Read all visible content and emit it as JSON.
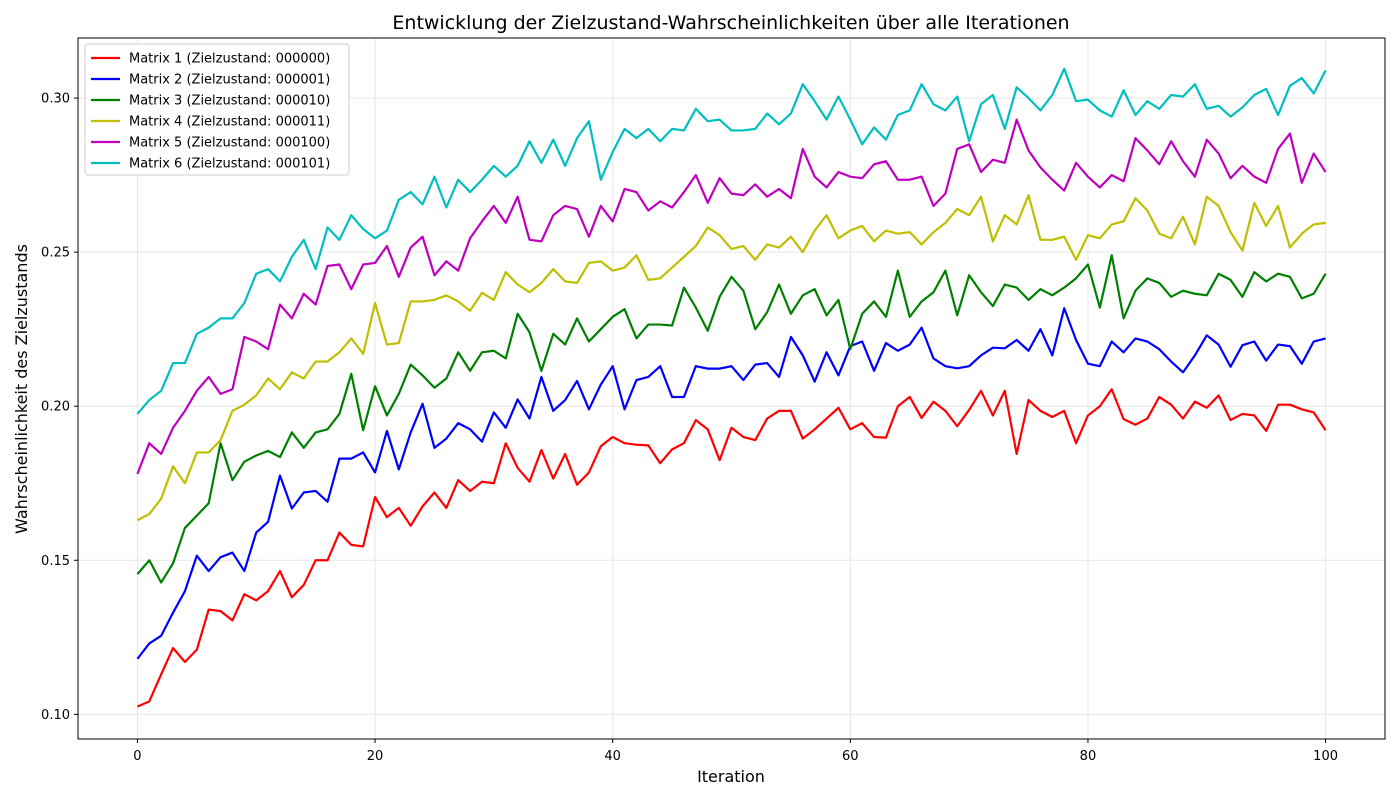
{
  "chart_data": {
    "type": "line",
    "title": "Entwicklung der Zielzustand-Wahrscheinlichkeiten über alle Iterationen",
    "xlabel": "Iteration",
    "ylabel": "Wahrscheinlichkeit des Zielzustands",
    "xlim": [
      -5,
      105
    ],
    "ylim": [
      0.092,
      0.3195
    ],
    "xticks": [
      0,
      20,
      40,
      60,
      80,
      100
    ],
    "yticks": [
      0.1,
      0.15,
      0.2,
      0.25,
      0.3
    ],
    "xtick_labels": [
      "0",
      "20",
      "40",
      "60",
      "80",
      "100"
    ],
    "ytick_labels": [
      "0.10",
      "0.15",
      "0.20",
      "0.25",
      "0.30"
    ],
    "grid": true,
    "legend_position": "upper-left",
    "x": [
      0,
      1,
      2,
      3,
      4,
      5,
      6,
      7,
      8,
      9,
      10,
      11,
      12,
      13,
      14,
      15,
      16,
      17,
      18,
      19,
      20,
      21,
      22,
      23,
      24,
      25,
      26,
      27,
      28,
      29,
      30,
      31,
      32,
      33,
      34,
      35,
      36,
      37,
      38,
      39,
      40,
      41,
      42,
      43,
      44,
      45,
      46,
      47,
      48,
      49,
      50,
      51,
      52,
      53,
      54,
      55,
      56,
      57,
      58,
      59,
      60,
      61,
      62,
      63,
      64,
      65,
      66,
      67,
      68,
      69,
      70,
      71,
      72,
      73,
      74,
      75,
      76,
      77,
      78,
      79,
      80,
      81,
      82,
      83,
      84,
      85,
      86,
      87,
      88,
      89,
      90,
      91,
      92,
      93,
      94,
      95,
      96,
      97,
      98,
      99,
      100
    ],
    "series": [
      {
        "name": "Matrix 1 (Zielzustand: 000000)",
        "color": "#ff0000",
        "values": [
          0.1025,
          0.1042,
          0.113,
          0.1215,
          0.117,
          0.121,
          0.134,
          0.1335,
          0.1305,
          0.139,
          0.137,
          0.14,
          0.1465,
          0.138,
          0.142,
          0.15,
          0.15,
          0.159,
          0.155,
          0.1545,
          0.1705,
          0.164,
          0.167,
          0.1612,
          0.1675,
          0.172,
          0.167,
          0.176,
          0.1725,
          0.1755,
          0.175,
          0.188,
          0.18,
          0.1755,
          0.1858,
          0.1765,
          0.1845,
          0.1745,
          0.1785,
          0.187,
          0.19,
          0.188,
          0.1875,
          0.1873,
          0.1815,
          0.186,
          0.188,
          0.1955,
          0.1925,
          0.1825,
          0.193,
          0.19,
          0.189,
          0.196,
          0.1985,
          0.1985,
          0.1895,
          0.1925,
          0.196,
          0.1995,
          0.1925,
          0.1945,
          0.19,
          0.1898,
          0.2,
          0.203,
          0.1962,
          0.2015,
          0.1985,
          0.1935,
          0.1988,
          0.205,
          0.197,
          0.205,
          0.1845,
          0.202,
          0.1985,
          0.1965,
          0.1985,
          0.188,
          0.197,
          0.2,
          0.2055,
          0.1958,
          0.194,
          0.196,
          0.203,
          0.2005,
          0.196,
          0.2015,
          0.1995,
          0.2035,
          0.1955,
          0.1975,
          0.197,
          0.192,
          0.2005,
          0.2005,
          0.199,
          0.198,
          0.1922
        ]
      },
      {
        "name": "Matrix 2 (Zielzustand: 000001)",
        "color": "#0000ff",
        "values": [
          0.118,
          0.123,
          0.1255,
          0.133,
          0.14,
          0.1515,
          0.1465,
          0.151,
          0.1525,
          0.1465,
          0.159,
          0.1625,
          0.1775,
          0.1668,
          0.172,
          0.1725,
          0.169,
          0.183,
          0.183,
          0.185,
          0.1785,
          0.192,
          0.1795,
          0.1915,
          0.2008,
          0.1865,
          0.1895,
          0.1945,
          0.1925,
          0.1885,
          0.198,
          0.193,
          0.2022,
          0.196,
          0.2095,
          0.1985,
          0.202,
          0.2082,
          0.199,
          0.207,
          0.213,
          0.199,
          0.2085,
          0.2095,
          0.213,
          0.203,
          0.203,
          0.213,
          0.2122,
          0.2122,
          0.213,
          0.2085,
          0.2135,
          0.214,
          0.2095,
          0.2225,
          0.2165,
          0.208,
          0.2175,
          0.21,
          0.2195,
          0.221,
          0.2115,
          0.2205,
          0.218,
          0.22,
          0.2255,
          0.2155,
          0.213,
          0.2123,
          0.213,
          0.2165,
          0.219,
          0.2188,
          0.2215,
          0.218,
          0.225,
          0.2165,
          0.2318,
          0.2215,
          0.2138,
          0.213,
          0.221,
          0.2175,
          0.222,
          0.221,
          0.2185,
          0.2145,
          0.211,
          0.2165,
          0.223,
          0.22,
          0.2128,
          0.2198,
          0.221,
          0.2148,
          0.22,
          0.2195,
          0.2138,
          0.221,
          0.222
        ]
      },
      {
        "name": "Matrix 3 (Zielzustand: 000010)",
        "color": "#008000",
        "values": [
          0.1455,
          0.15,
          0.1428,
          0.149,
          0.1605,
          0.1645,
          0.1685,
          0.188,
          0.176,
          0.182,
          0.184,
          0.1855,
          0.1835,
          0.1915,
          0.1865,
          0.1915,
          0.1925,
          0.1975,
          0.2105,
          0.1922,
          0.2065,
          0.197,
          0.204,
          0.2135,
          0.21,
          0.206,
          0.209,
          0.2175,
          0.2115,
          0.2175,
          0.218,
          0.2155,
          0.23,
          0.224,
          0.2115,
          0.2235,
          0.22,
          0.2285,
          0.221,
          0.225,
          0.229,
          0.2315,
          0.222,
          0.2265,
          0.2265,
          0.2262,
          0.2385,
          0.232,
          0.2245,
          0.2355,
          0.242,
          0.2375,
          0.225,
          0.2305,
          0.2395,
          0.23,
          0.236,
          0.238,
          0.2295,
          0.2345,
          0.2185,
          0.23,
          0.234,
          0.229,
          0.244,
          0.229,
          0.234,
          0.237,
          0.244,
          0.2295,
          0.2425,
          0.237,
          0.2325,
          0.2395,
          0.2385,
          0.2345,
          0.238,
          0.236,
          0.2385,
          0.2415,
          0.246,
          0.232,
          0.249,
          0.2285,
          0.2375,
          0.2415,
          0.24,
          0.2355,
          0.2375,
          0.2365,
          0.236,
          0.243,
          0.241,
          0.2355,
          0.2435,
          0.2405,
          0.243,
          0.242,
          0.235,
          0.2365,
          0.243
        ]
      },
      {
        "name": "Matrix 4 (Zielzustand: 000011)",
        "color": "#bfbf00",
        "values": [
          0.163,
          0.165,
          0.17,
          0.1805,
          0.175,
          0.185,
          0.185,
          0.189,
          0.1985,
          0.2005,
          0.2035,
          0.209,
          0.2055,
          0.211,
          0.209,
          0.2145,
          0.2145,
          0.2175,
          0.222,
          0.217,
          0.2335,
          0.22,
          0.2205,
          0.234,
          0.234,
          0.2345,
          0.236,
          0.234,
          0.231,
          0.2368,
          0.2345,
          0.2435,
          0.2395,
          0.237,
          0.24,
          0.2445,
          0.2405,
          0.24,
          0.2465,
          0.247,
          0.244,
          0.245,
          0.249,
          0.241,
          0.2415,
          0.245,
          0.2485,
          0.252,
          0.258,
          0.2555,
          0.251,
          0.252,
          0.2475,
          0.2525,
          0.2515,
          0.255,
          0.25,
          0.257,
          0.262,
          0.2545,
          0.257,
          0.2585,
          0.2535,
          0.257,
          0.256,
          0.2565,
          0.2525,
          0.2565,
          0.2595,
          0.264,
          0.262,
          0.268,
          0.2535,
          0.262,
          0.259,
          0.2685,
          0.254,
          0.254,
          0.255,
          0.2475,
          0.2555,
          0.2545,
          0.259,
          0.26,
          0.2675,
          0.2635,
          0.256,
          0.2545,
          0.2615,
          0.2525,
          0.268,
          0.265,
          0.2565,
          0.2505,
          0.266,
          0.2585,
          0.265,
          0.2515,
          0.256,
          0.259,
          0.2595
        ]
      },
      {
        "name": "Matrix 5 (Zielzustand: 000100)",
        "color": "#bf00bf",
        "values": [
          0.178,
          0.188,
          0.1845,
          0.193,
          0.1985,
          0.205,
          0.2095,
          0.204,
          0.2055,
          0.2225,
          0.221,
          0.2185,
          0.233,
          0.2285,
          0.2365,
          0.233,
          0.2455,
          0.246,
          0.238,
          0.246,
          0.2465,
          0.252,
          0.242,
          0.2515,
          0.255,
          0.2425,
          0.247,
          0.244,
          0.2545,
          0.26,
          0.265,
          0.2595,
          0.268,
          0.254,
          0.2535,
          0.262,
          0.265,
          0.264,
          0.255,
          0.265,
          0.26,
          0.2705,
          0.2695,
          0.2635,
          0.2665,
          0.2645,
          0.2695,
          0.275,
          0.266,
          0.274,
          0.269,
          0.2685,
          0.272,
          0.268,
          0.2705,
          0.2675,
          0.2835,
          0.2745,
          0.271,
          0.276,
          0.2745,
          0.274,
          0.2785,
          0.2795,
          0.2735,
          0.2735,
          0.2745,
          0.265,
          0.269,
          0.2835,
          0.285,
          0.276,
          0.28,
          0.279,
          0.293,
          0.283,
          0.2775,
          0.2735,
          0.27,
          0.279,
          0.2745,
          0.271,
          0.275,
          0.273,
          0.287,
          0.283,
          0.2785,
          0.286,
          0.2795,
          0.2745,
          0.2865,
          0.282,
          0.274,
          0.278,
          0.2745,
          0.2725,
          0.2835,
          0.2885,
          0.2725,
          0.282,
          0.276
        ]
      },
      {
        "name": "Matrix 6 (Zielzustand: 000101)",
        "color": "#00bfbf",
        "values": [
          0.1975,
          0.202,
          0.205,
          0.214,
          0.214,
          0.2235,
          0.2255,
          0.2285,
          0.2285,
          0.2335,
          0.243,
          0.2445,
          0.2405,
          0.2485,
          0.254,
          0.2445,
          0.258,
          0.254,
          0.262,
          0.2575,
          0.2545,
          0.257,
          0.267,
          0.2695,
          0.2655,
          0.2745,
          0.2645,
          0.2735,
          0.2695,
          0.2735,
          0.278,
          0.2745,
          0.278,
          0.286,
          0.279,
          0.2865,
          0.278,
          0.287,
          0.2925,
          0.2735,
          0.2825,
          0.29,
          0.287,
          0.29,
          0.286,
          0.29,
          0.2895,
          0.2965,
          0.2925,
          0.293,
          0.2895,
          0.2895,
          0.29,
          0.295,
          0.2915,
          0.295,
          0.3045,
          0.299,
          0.293,
          0.3005,
          0.293,
          0.285,
          0.2905,
          0.2865,
          0.2945,
          0.296,
          0.3045,
          0.298,
          0.296,
          0.3005,
          0.286,
          0.298,
          0.301,
          0.29,
          0.3035,
          0.3,
          0.296,
          0.301,
          0.3095,
          0.299,
          0.2995,
          0.296,
          0.294,
          0.3025,
          0.2945,
          0.299,
          0.2965,
          0.301,
          0.3005,
          0.3045,
          0.2965,
          0.2975,
          0.294,
          0.297,
          0.301,
          0.303,
          0.2945,
          0.304,
          0.3065,
          0.3015,
          0.309
        ]
      }
    ]
  }
}
